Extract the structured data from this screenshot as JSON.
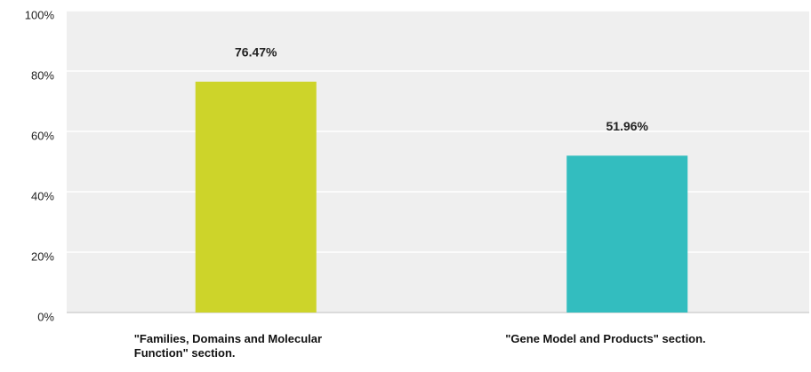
{
  "chart_data": {
    "type": "bar",
    "categories": [
      "\"Families, Domains and Molecular Function\" section.",
      "\"Gene Model and Products\" section."
    ],
    "values": [
      76.47,
      51.96
    ],
    "value_labels": [
      "76.47%",
      "51.96%"
    ],
    "colors": [
      "#cdd42a",
      "#33bdbf"
    ],
    "ylim": [
      0,
      100
    ],
    "yticks": [
      {
        "value": 0,
        "label": "0%"
      },
      {
        "value": 20,
        "label": "20%"
      },
      {
        "value": 40,
        "label": "40%"
      },
      {
        "value": 60,
        "label": "60%"
      },
      {
        "value": 80,
        "label": "80%"
      },
      {
        "value": 100,
        "label": "100%"
      }
    ],
    "grid": true
  }
}
